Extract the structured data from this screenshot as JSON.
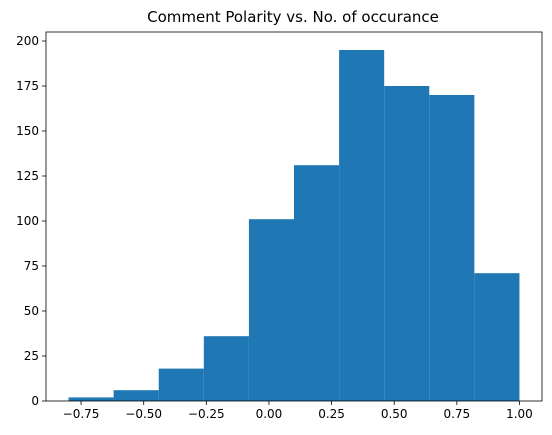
{
  "chart_data": {
    "type": "bar",
    "title": "Comment Polarity vs. No. of occurance",
    "xlabel": "",
    "ylabel": "",
    "bins": [
      {
        "x0": -0.8,
        "x1": -0.62,
        "count": 2
      },
      {
        "x0": -0.62,
        "x1": -0.44,
        "count": 6
      },
      {
        "x0": -0.44,
        "x1": -0.26,
        "count": 18
      },
      {
        "x0": -0.26,
        "x1": -0.08,
        "count": 36
      },
      {
        "x0": -0.08,
        "x1": 0.1,
        "count": 101
      },
      {
        "x0": 0.1,
        "x1": 0.28,
        "count": 131
      },
      {
        "x0": 0.28,
        "x1": 0.46,
        "count": 195
      },
      {
        "x0": 0.46,
        "x1": 0.64,
        "count": 175
      },
      {
        "x0": 0.64,
        "x1": 0.82,
        "count": 170
      },
      {
        "x0": 0.82,
        "x1": 1.0,
        "count": 71
      }
    ],
    "xlim": [
      -0.89,
      1.09
    ],
    "ylim": [
      0,
      205
    ],
    "xticks": [
      -0.75,
      -0.5,
      -0.25,
      0.0,
      0.25,
      0.5,
      0.75,
      1.0
    ],
    "xtick_labels": [
      "−0.75",
      "−0.50",
      "−0.25",
      "0.00",
      "0.25",
      "0.50",
      "0.75",
      "1.00"
    ],
    "yticks": [
      0,
      25,
      50,
      75,
      100,
      125,
      150,
      175,
      200
    ],
    "ytick_labels": [
      "0",
      "25",
      "50",
      "75",
      "100",
      "125",
      "150",
      "175",
      "200"
    ],
    "grid": false,
    "colors": {
      "bar": "#1f77b4",
      "axis": "#000000"
    }
  }
}
